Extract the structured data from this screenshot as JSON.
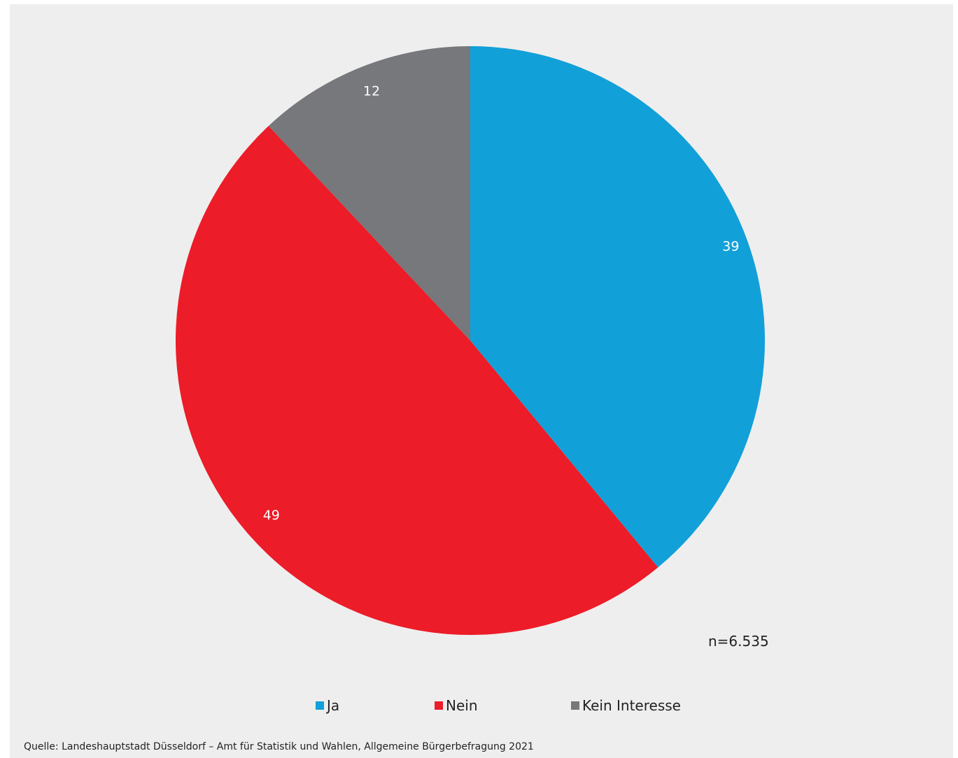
{
  "chart_data": {
    "type": "pie",
    "categories": [
      "Ja",
      "Nein",
      "Kein Interesse"
    ],
    "values": [
      39,
      49,
      12
    ],
    "colors": [
      "#12a0d9",
      "#ec1c28",
      "#76787b"
    ],
    "start_angle": "12 o'clock",
    "direction": "clockwise",
    "data_labels": [
      "39",
      "49",
      "12"
    ],
    "legend_placement": "bottom",
    "annotation": "n=6.535"
  },
  "source_text": "Quelle: Landeshauptstadt Düsseldorf – Amt für Statistik und Wahlen, Allgemeine Bürgerbefragung 2021",
  "background_color": "#eeeeee"
}
